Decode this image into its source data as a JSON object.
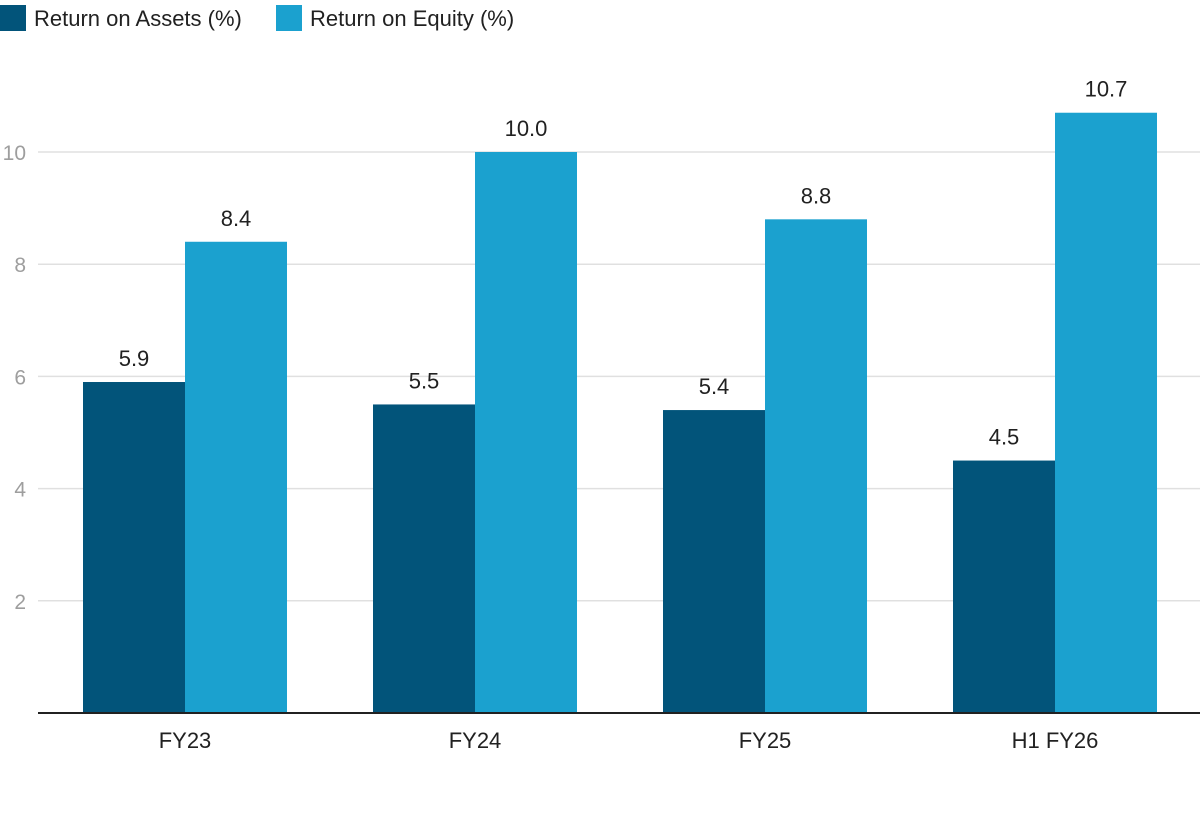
{
  "chart_data": {
    "type": "bar",
    "title": "",
    "xlabel": "",
    "ylabel": "",
    "categories": [
      "FY23",
      "FY24",
      "FY25",
      "H1 FY26"
    ],
    "series": [
      {
        "name": "Return on Assets (%)",
        "color": "#02547a",
        "values": [
          5.9,
          5.5,
          5.4,
          4.5
        ],
        "labels": [
          "5.9",
          "5.5",
          "5.4",
          "4.5"
        ]
      },
      {
        "name": "Return on Equity (%)",
        "color": "#1ba1cf",
        "values": [
          8.4,
          10.0,
          8.8,
          10.7
        ],
        "labels": [
          "8.4",
          "10.0",
          "8.8",
          "10.7"
        ]
      }
    ],
    "ylim": [
      0,
      11
    ],
    "yticks": [
      2,
      4,
      6,
      8,
      10
    ],
    "ytick_labels": [
      "2",
      "4",
      "6",
      "8",
      "10"
    ],
    "grid": true,
    "legend_position": "top-left"
  }
}
